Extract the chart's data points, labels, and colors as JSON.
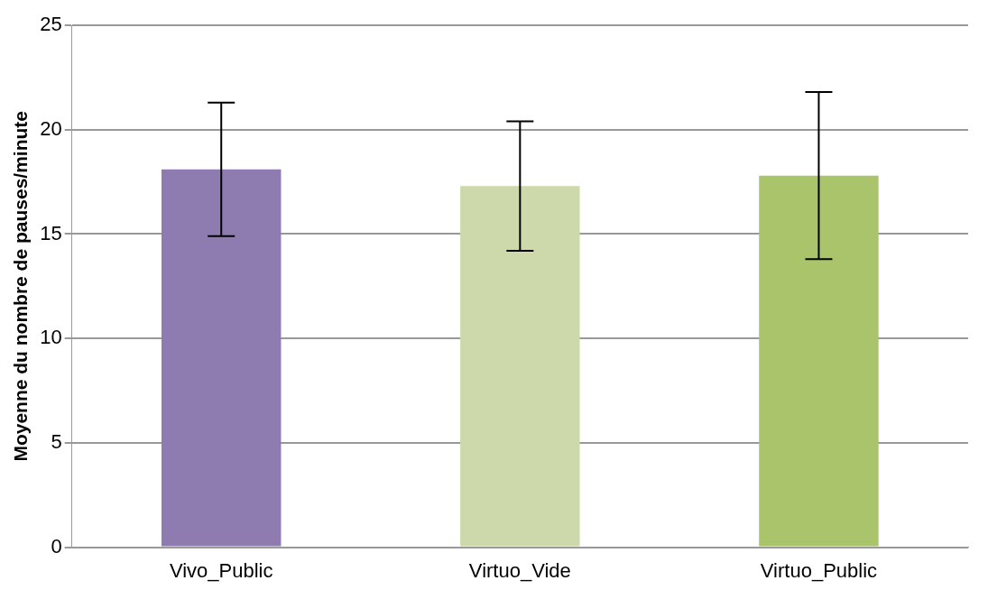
{
  "chart_data": {
    "type": "bar",
    "ylabel": "Moyenne du nombre de pauses/minute",
    "categories": [
      "Vivo_Public",
      "Virtuo_Vide",
      "Virtuo_Public"
    ],
    "values": [
      18.1,
      17.3,
      17.8
    ],
    "colors": [
      "#8e7cb0",
      "#cdd9aa",
      "#a9c46a"
    ],
    "errors": [
      3.2,
      3.1,
      4.0
    ],
    "ylim": [
      0,
      25
    ],
    "yticks": [
      0,
      5,
      10,
      15,
      20,
      25
    ],
    "grid": "y"
  }
}
